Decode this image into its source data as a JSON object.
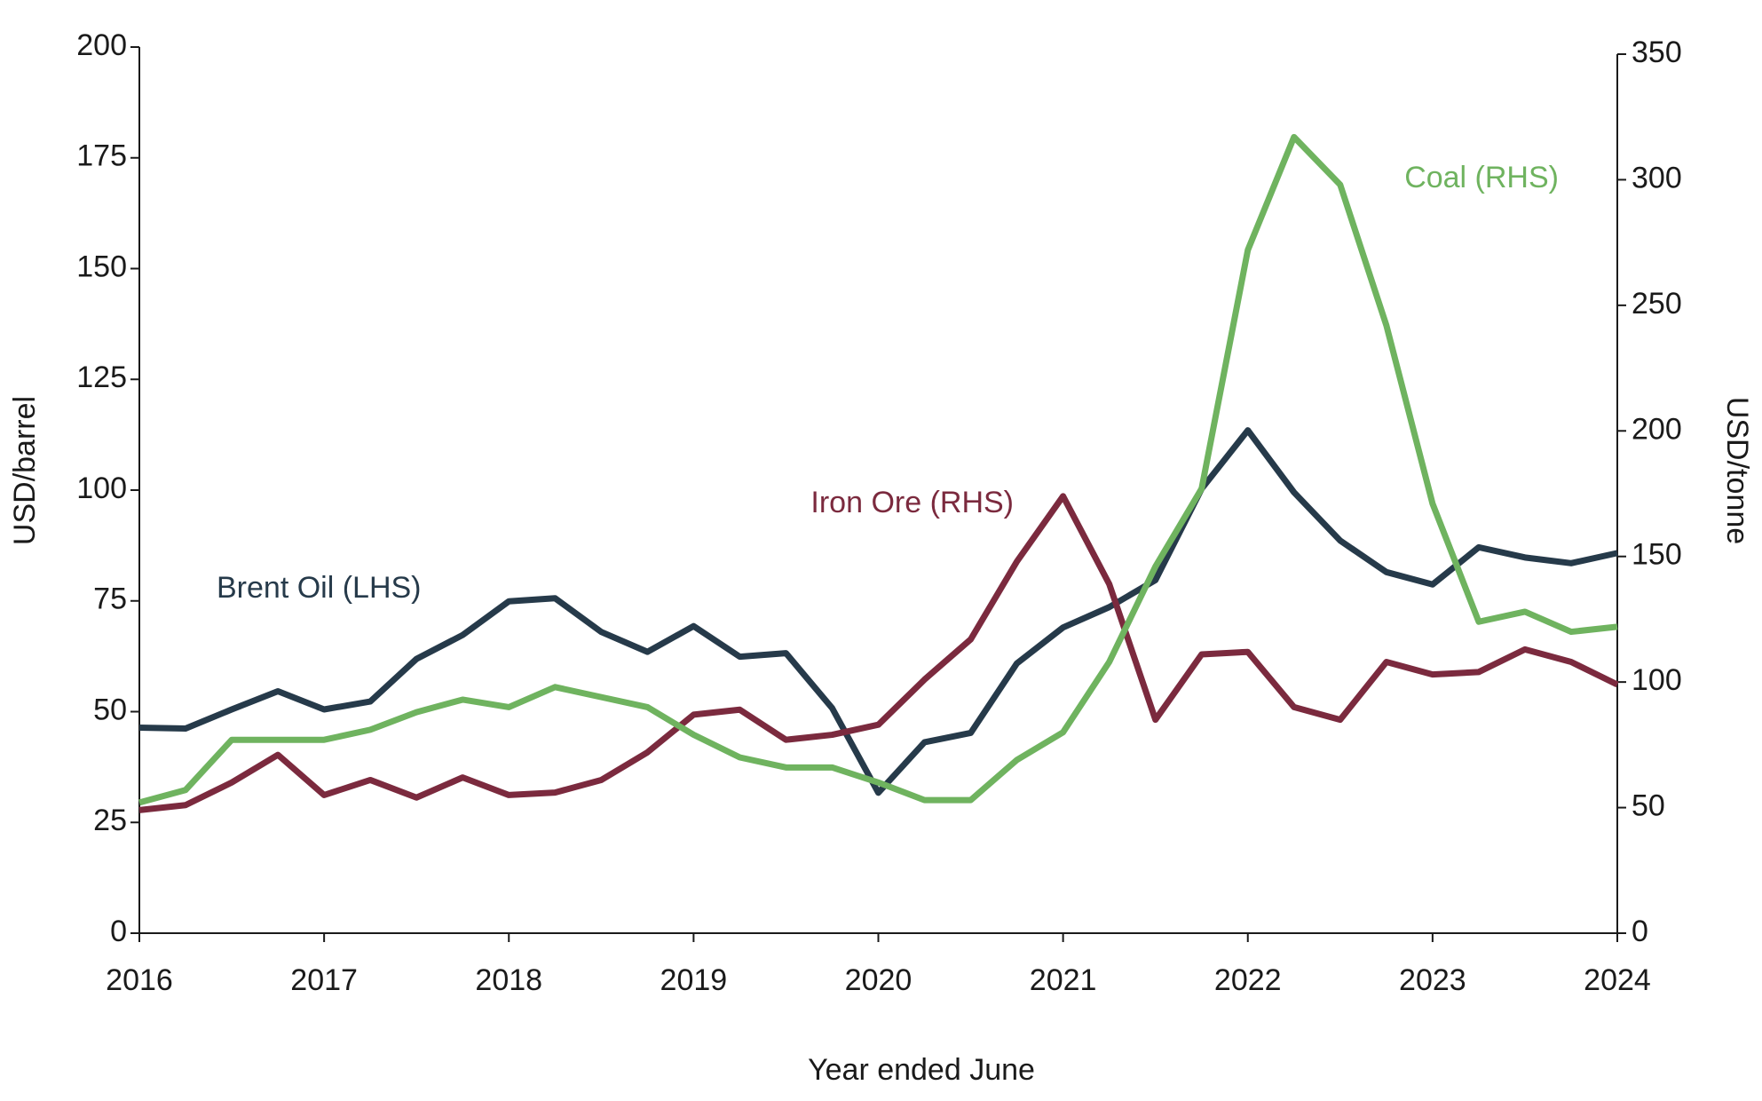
{
  "chart_data": {
    "type": "line",
    "x_label": "Year ended June",
    "y_label": "USD/barrel",
    "y2_label": "USD/tonne",
    "x": [
      2016,
      2016.25,
      2016.5,
      2016.75,
      2017,
      2017.25,
      2017.5,
      2017.75,
      2018,
      2018.25,
      2018.5,
      2018.75,
      2019,
      2019.25,
      2019.5,
      2019.75,
      2020,
      2020.25,
      2020.5,
      2020.75,
      2021,
      2021.25,
      2021.5,
      2021.75,
      2022,
      2022.25,
      2022.5,
      2022.75,
      2023,
      2023.25,
      2023.5,
      2023.75,
      2024
    ],
    "xlim": [
      2016,
      2024
    ],
    "xticks": [
      2016,
      2017,
      2018,
      2019,
      2020,
      2021,
      2022,
      2023,
      2024
    ],
    "ylim": [
      0,
      200
    ],
    "yticks": [
      0,
      25,
      50,
      75,
      100,
      125,
      150,
      175,
      200
    ],
    "y2lim": [
      0,
      350
    ],
    "y2ticks": [
      0,
      50,
      100,
      150,
      200,
      250,
      300,
      350
    ],
    "series": [
      {
        "name": "Brent Oil (LHS)",
        "color": "#263a4a",
        "axis": "y",
        "values": [
          46.4,
          46.2,
          50.5,
          54.6,
          50.5,
          52.3,
          61.9,
          67.3,
          74.9,
          75.6,
          68,
          63.5,
          69.3,
          62.4,
          63.2,
          50.8,
          31.7,
          43.1,
          45.2,
          60.9,
          69,
          73.6,
          79.7,
          100.3,
          113.5,
          99.5,
          88.6,
          81.5,
          78.7,
          87.1,
          84.8,
          83.5,
          85.8
        ]
      },
      {
        "name": "Iron Ore (RHS)",
        "color": "#7b2a3e",
        "axis": "y2",
        "values": [
          49,
          51,
          60,
          71,
          55,
          61,
          54,
          62,
          55,
          56,
          61,
          72,
          87,
          89,
          77,
          79,
          83,
          101,
          117,
          148,
          174,
          139,
          85,
          111,
          112,
          90,
          85,
          108,
          103,
          104,
          113,
          108,
          99
        ]
      },
      {
        "name": "Coal (RHS)",
        "color": "#6fb35f",
        "axis": "y2",
        "values": [
          52,
          57,
          77,
          77,
          77,
          81,
          88,
          93,
          90,
          98,
          94,
          90,
          79,
          70,
          66,
          66,
          60,
          53,
          53,
          69,
          80,
          108,
          146,
          177,
          272,
          317,
          298,
          242,
          171,
          124,
          128,
          120,
          122
        ]
      }
    ]
  }
}
